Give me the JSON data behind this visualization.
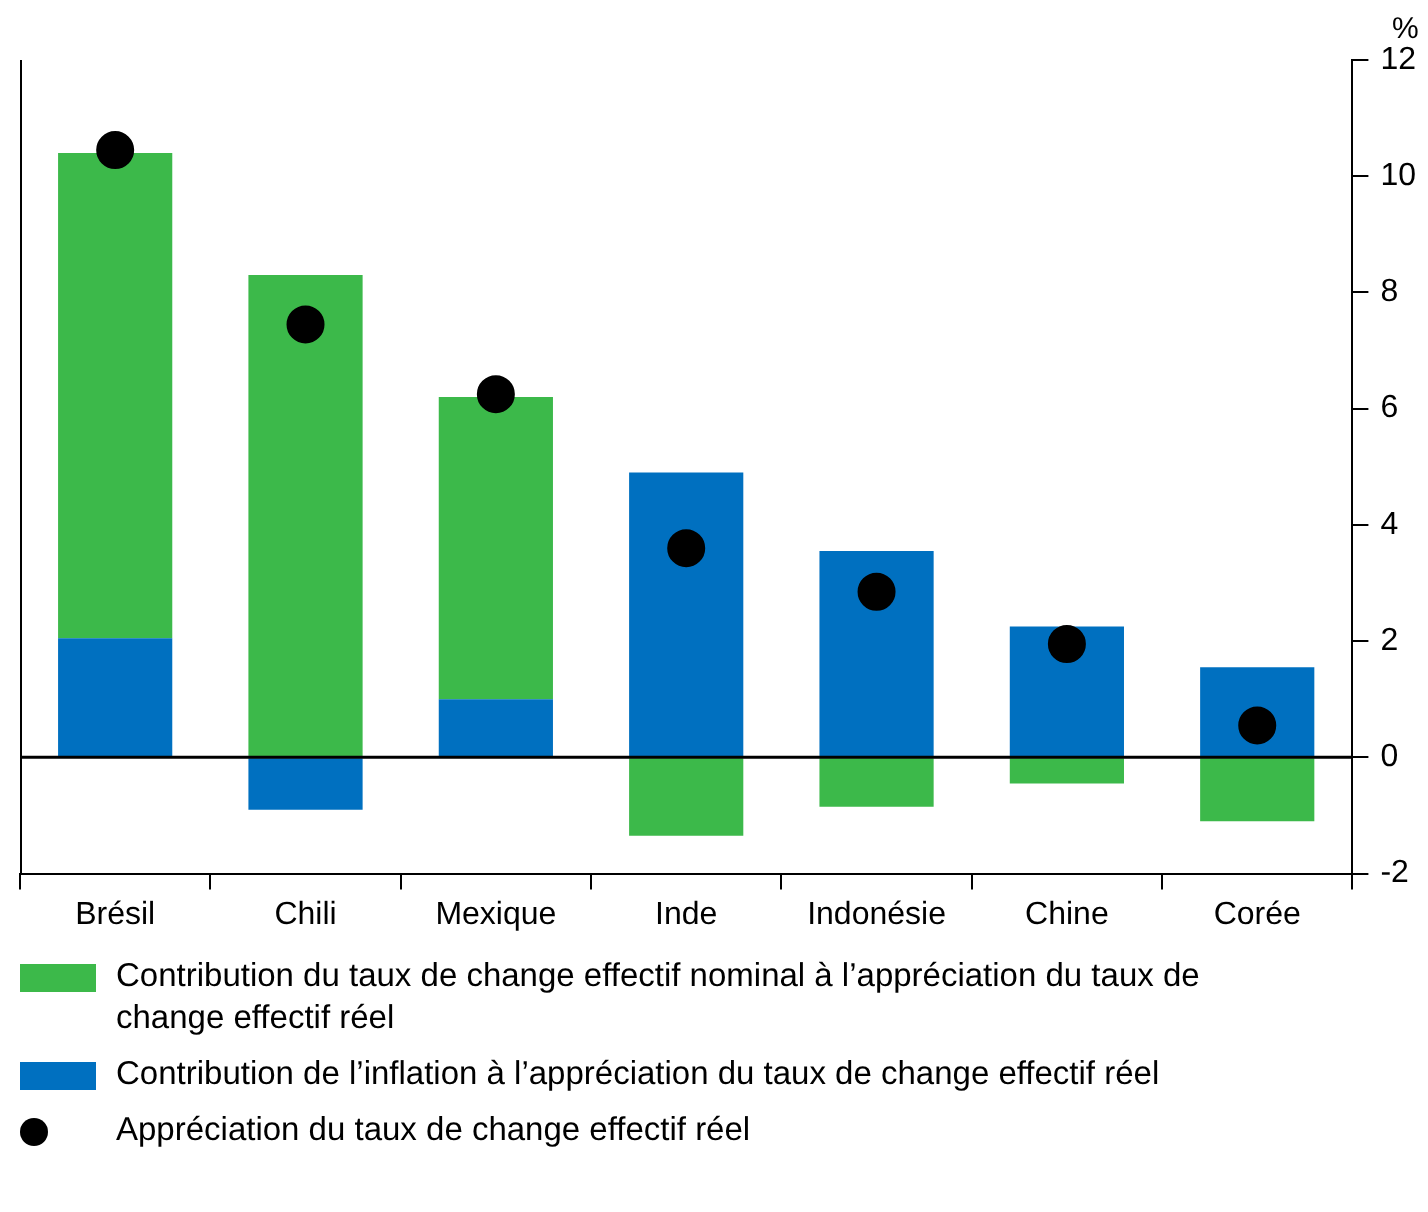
{
  "chart_data": {
    "type": "bar",
    "stacked": true,
    "ylabel": "%",
    "categories": [
      "Brésil",
      "Chili",
      "Mexique",
      "Inde",
      "Indonésie",
      "Chine",
      "Corée"
    ],
    "series": [
      {
        "name": "Contribution de l’inflation à l’appréciation du taux de change effectif réel",
        "color": "#0070c0",
        "values": [
          2.05,
          -0.9,
          1.0,
          4.9,
          3.55,
          2.25,
          1.55
        ]
      },
      {
        "name": "Contribution du taux de change effectif nominal à l’appréciation du taux de change effectif réel",
        "color": "#3cb94a",
        "values": [
          8.35,
          8.3,
          5.2,
          -1.35,
          -0.85,
          -0.45,
          -1.1
        ]
      },
      {
        "name": "Appréciation du taux de change effectif réel",
        "type": "scatter",
        "color": "#000000",
        "x": [
          "Brésil",
          "Chili",
          "Mexique",
          "Inde",
          "Indonésie",
          "Chine",
          "Corée"
        ],
        "values": [
          10.45,
          7.45,
          6.25,
          3.6,
          2.85,
          1.95,
          0.55
        ]
      }
    ],
    "ylim": [
      -2,
      12
    ],
    "yticks": [
      -2,
      0,
      2,
      4,
      6,
      8,
      10,
      12
    ],
    "grid": false,
    "legend": "bottom",
    "marker": "circle",
    "ref_lines": [
      {
        "axis": "y",
        "value": 0,
        "color": "#000000"
      }
    ]
  }
}
